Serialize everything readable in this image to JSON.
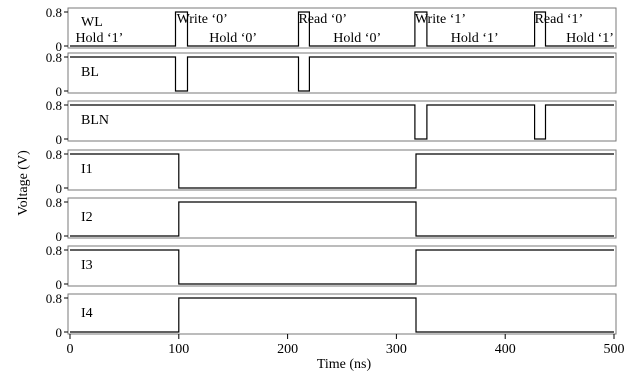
{
  "chart_data": {
    "type": "line",
    "xlabel": "Time (ns)",
    "ylabel": "Voltage (V)",
    "xlim": [
      0,
      500
    ],
    "x_ticks": [
      0,
      100,
      200,
      300,
      400,
      500
    ],
    "x_tick_labels": [
      "0",
      "100",
      "200",
      "300",
      "400",
      "500"
    ],
    "y_tick_labels": [
      "0.8",
      "0"
    ],
    "ylim": [
      0,
      0.85
    ],
    "grid": false,
    "panels": [
      {
        "name": "WL",
        "x": [
          0,
          97,
          97,
          108,
          108,
          210,
          210,
          220,
          220,
          317,
          317,
          328,
          328,
          427,
          427,
          437,
          437,
          500
        ],
        "y": [
          0,
          0,
          0.8,
          0.8,
          0,
          0,
          0.8,
          0.8,
          0,
          0,
          0.8,
          0.8,
          0,
          0,
          0.8,
          0.8,
          0,
          0
        ]
      },
      {
        "name": "BL",
        "x": [
          0,
          97,
          97,
          108,
          108,
          210,
          210,
          220,
          220,
          500
        ],
        "y": [
          0.8,
          0.8,
          0,
          0,
          0.8,
          0.8,
          0,
          0,
          0.8,
          0.8
        ]
      },
      {
        "name": "BLN",
        "x": [
          0,
          317,
          317,
          328,
          328,
          427,
          427,
          437,
          437,
          500
        ],
        "y": [
          0.8,
          0.8,
          0,
          0,
          0.8,
          0.8,
          0,
          0,
          0.8,
          0.8
        ]
      },
      {
        "name": "I1",
        "x": [
          0,
          100,
          100,
          318,
          318,
          500
        ],
        "y": [
          0.8,
          0.8,
          0,
          0,
          0.8,
          0.8
        ]
      },
      {
        "name": "I2",
        "x": [
          0,
          100,
          100,
          318,
          318,
          500
        ],
        "y": [
          0,
          0,
          0.8,
          0.8,
          0,
          0
        ]
      },
      {
        "name": "I3",
        "x": [
          0,
          100,
          100,
          318,
          318,
          500
        ],
        "y": [
          0.8,
          0.8,
          0,
          0,
          0.8,
          0.8
        ]
      },
      {
        "name": "I4",
        "x": [
          0,
          100,
          100,
          318,
          318,
          500
        ],
        "y": [
          0,
          0,
          0.8,
          0.8,
          0,
          0
        ]
      }
    ],
    "annotations": [
      {
        "text": "Hold  ‘1’",
        "x": 5,
        "row": "lower"
      },
      {
        "text": "Write  ‘0’",
        "x": 98,
        "row": "upper"
      },
      {
        "text": "Hold  ‘0’",
        "x": 128,
        "row": "lower"
      },
      {
        "text": "Read  ‘0’",
        "x": 210,
        "row": "upper"
      },
      {
        "text": "Hold  ‘0’",
        "x": 242,
        "row": "lower"
      },
      {
        "text": "Write  ‘1’",
        "x": 317,
        "row": "upper"
      },
      {
        "text": "Hold  ‘1’",
        "x": 350,
        "row": "lower"
      },
      {
        "text": "Read  ‘1’",
        "x": 427,
        "row": "upper"
      },
      {
        "text": "Hold  ‘1’",
        "x": 456,
        "row": "lower"
      }
    ]
  }
}
